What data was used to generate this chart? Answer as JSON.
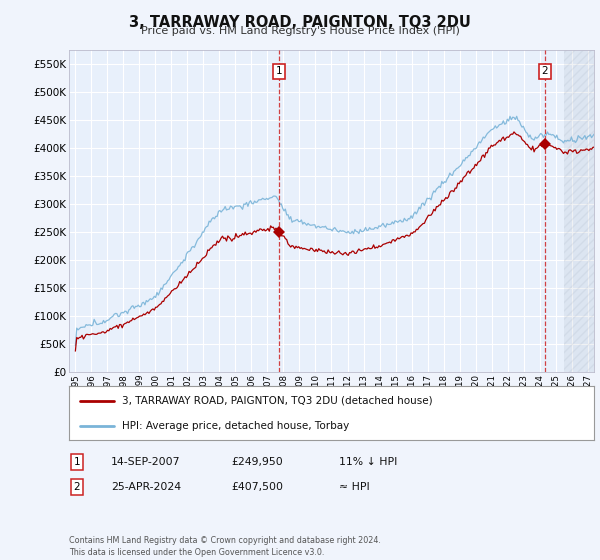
{
  "title": "3, TARRAWAY ROAD, PAIGNTON, TQ3 2DU",
  "subtitle": "Price paid vs. HM Land Registry's House Price Index (HPI)",
  "background_color": "#f0f4fc",
  "plot_bg_color": "#e8f0fb",
  "grid_color": "#ffffff",
  "ylim": [
    0,
    575000
  ],
  "yticks": [
    0,
    50000,
    100000,
    150000,
    200000,
    250000,
    300000,
    350000,
    400000,
    450000,
    500000,
    550000
  ],
  "hpi_color": "#7ab4d8",
  "price_color": "#aa0000",
  "sale1_x": 2007.72,
  "sale1_y": 249950,
  "sale2_x": 2024.32,
  "sale2_y": 407500,
  "vline1_x": 2007.72,
  "vline2_x": 2024.32,
  "hatch_start": 2025.5,
  "xlim_left": 1994.6,
  "xlim_right": 2027.4,
  "legend_label1": "3, TARRAWAY ROAD, PAIGNTON, TQ3 2DU (detached house)",
  "legend_label2": "HPI: Average price, detached house, Torbay",
  "ann1_label": "1",
  "ann2_label": "2",
  "ann1_date": "14-SEP-2007",
  "ann1_price": "£249,950",
  "ann1_hpi": "11% ↓ HPI",
  "ann2_date": "25-APR-2024",
  "ann2_price": "£407,500",
  "ann2_hpi": "≈ HPI",
  "footer": "Contains HM Land Registry data © Crown copyright and database right 2024.\nThis data is licensed under the Open Government Licence v3.0."
}
